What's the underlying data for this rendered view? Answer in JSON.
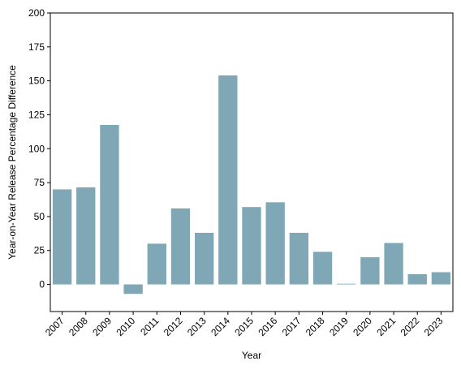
{
  "chart_data": {
    "type": "bar",
    "title": "",
    "xlabel": "Year",
    "ylabel": "Year-on-Year Release Percentage Difference",
    "categories": [
      "2007",
      "2008",
      "2009",
      "2010",
      "2011",
      "2012",
      "2013",
      "2014",
      "2015",
      "2016",
      "2017",
      "2018",
      "2019",
      "2020",
      "2021",
      "2022",
      "2023"
    ],
    "series": [
      {
        "values": [
          70,
          71.5,
          117.5,
          -7,
          30,
          56,
          38,
          154,
          57,
          60.5,
          38,
          24,
          0.5,
          20,
          30.5,
          7.5,
          9
        ]
      }
    ],
    "ylim": [
      -20,
      200
    ],
    "yticks": [
      0,
      25,
      50,
      75,
      100,
      125,
      150,
      175,
      200
    ],
    "grid": false,
    "bar_color": "#7fa7b5",
    "legend": false
  }
}
